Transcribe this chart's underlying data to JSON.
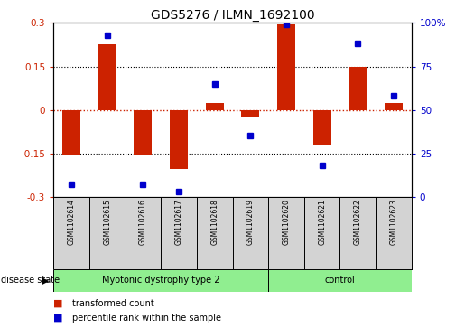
{
  "title": "GDS5276 / ILMN_1692100",
  "samples": [
    "GSM1102614",
    "GSM1102615",
    "GSM1102616",
    "GSM1102617",
    "GSM1102618",
    "GSM1102619",
    "GSM1102620",
    "GSM1102621",
    "GSM1102622",
    "GSM1102623"
  ],
  "bar_values": [
    -0.155,
    0.225,
    -0.155,
    -0.205,
    0.025,
    -0.025,
    0.295,
    -0.12,
    0.15,
    0.025
  ],
  "scatter_values": [
    7,
    93,
    7,
    3,
    65,
    35,
    99,
    18,
    88,
    58
  ],
  "group1_label": "Myotonic dystrophy type 2",
  "group1_count": 6,
  "group2_label": "control",
  "group2_count": 4,
  "disease_state_label": "disease state",
  "ylim_left": [
    -0.3,
    0.3
  ],
  "ylim_right": [
    0,
    100
  ],
  "yticks_left": [
    -0.3,
    -0.15,
    0.0,
    0.15,
    0.3
  ],
  "yticks_right": [
    0,
    25,
    50,
    75,
    100
  ],
  "ytick_labels_left": [
    "-0.3",
    "-0.15",
    "0",
    "0.15",
    "0.3"
  ],
  "ytick_labels_right": [
    "0",
    "25",
    "50",
    "75",
    "100%"
  ],
  "bar_color": "#CC2200",
  "scatter_color": "#0000CC",
  "hline_color": "#CC2200",
  "legend_bar_label": "transformed count",
  "legend_scatter_label": "percentile rank within the sample",
  "bg_plot": "#FFFFFF",
  "bg_sample_box": "#D3D3D3",
  "group_color": "#90EE90",
  "title_fontsize": 10,
  "tick_fontsize": 7.5,
  "sample_fontsize": 5.5,
  "bar_width": 0.5,
  "scatter_marker": "s",
  "scatter_markersize": 4
}
